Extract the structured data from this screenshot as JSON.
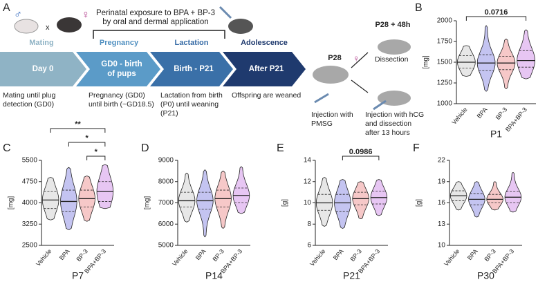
{
  "panel_a": {
    "label": "A",
    "male": "♂",
    "times": "x",
    "female": "♀",
    "exposure": [
      "Perinatal exposure to BPA + BP-3",
      "by oral and dermal application"
    ],
    "phases": [
      {
        "name": "Mating",
        "step": [
          "Day 0"
        ],
        "desc": [
          "Mating until plug",
          "detection (GD0)"
        ]
      },
      {
        "name": "Pregnancy",
        "step": [
          "GD0 - birth",
          "of pups"
        ],
        "desc": [
          "Pregnancy (GD0)",
          "until birth (~GD18.5)"
        ]
      },
      {
        "name": "Lactation",
        "step": [
          "Birth - P21"
        ],
        "desc": [
          "Lactation from birth",
          "(P0) until weaning",
          "(P21)"
        ]
      },
      {
        "name": "Adolescence",
        "step": [
          "After P21"
        ],
        "desc": [
          "Offspring are weaned"
        ]
      }
    ],
    "p28": "P28",
    "p28_48": "P28 + 48h",
    "dissection": "Dissection",
    "female2": "♀",
    "pmsg": [
      "Injection with",
      "PMSG"
    ],
    "hcg": [
      "Injection with hCG",
      "and dissection",
      "after 13 hours"
    ]
  },
  "chart_data": [
    {
      "type": "violin",
      "panel": "B",
      "title": "P1",
      "y_label": "[mg]",
      "categories": [
        "Vehicle",
        "BPA",
        "BP-3",
        "BPA+BP-3"
      ],
      "colors": [
        "#b0b0b0",
        "#3a3ad0",
        "#e04848",
        "#b040d8"
      ],
      "median": [
        1500,
        1490,
        1490,
        1520
      ],
      "q1": [
        1430,
        1400,
        1410,
        1440
      ],
      "q3": [
        1580,
        1590,
        1570,
        1640
      ],
      "min": [
        1330,
        1150,
        1180,
        1300
      ],
      "max": [
        1700,
        1940,
        1780,
        1890
      ],
      "ylim": [
        1000,
        2000
      ],
      "yticks": [
        1000,
        1250,
        1500,
        1750,
        2000
      ],
      "annotations": [
        {
          "text": "0.0716",
          "between": [
            "Vehicle",
            "BPA+BP-3"
          ]
        }
      ]
    },
    {
      "type": "violin",
      "panel": "C",
      "title": "P7",
      "y_label": "[mg]",
      "categories": [
        "Vehicle",
        "BPA",
        "BP-3",
        "BPA+BP-3"
      ],
      "colors": [
        "#b0b0b0",
        "#3a3ad0",
        "#e04848",
        "#b040d8"
      ],
      "median": [
        4100,
        4050,
        4150,
        4400
      ],
      "q1": [
        3800,
        3700,
        3850,
        4050
      ],
      "q3": [
        4400,
        4450,
        4450,
        4750
      ],
      "min": [
        3400,
        3050,
        3350,
        3800
      ],
      "max": [
        4900,
        5250,
        4950,
        5350
      ],
      "ylim": [
        2500,
        5500
      ],
      "yticks": [
        2500,
        3250,
        4000,
        4750,
        5500
      ],
      "annotations": [
        {
          "text": "**",
          "between": [
            "Vehicle",
            "BPA+BP-3"
          ]
        },
        {
          "text": "*",
          "between": [
            "BPA",
            "BPA+BP-3"
          ]
        },
        {
          "text": "*",
          "between": [
            "BP-3",
            "BPA+BP-3"
          ]
        }
      ]
    },
    {
      "type": "violin",
      "panel": "D",
      "title": "P14",
      "y_label": "[mg]",
      "categories": [
        "Vehicle",
        "BPA",
        "BP-3",
        "BPA+BP-3"
      ],
      "colors": [
        "#b0b0b0",
        "#3a3ad0",
        "#e04848",
        "#b040d8"
      ],
      "median": [
        7100,
        7100,
        7200,
        7350
      ],
      "q1": [
        6800,
        6700,
        6800,
        7000
      ],
      "q3": [
        7500,
        7500,
        7600,
        7700
      ],
      "min": [
        6100,
        5400,
        5800,
        6500
      ],
      "max": [
        8400,
        8550,
        8500,
        8700
      ],
      "ylim": [
        5000,
        9000
      ],
      "yticks": [
        5000,
        6000,
        7000,
        8000,
        9000
      ],
      "annotations": []
    },
    {
      "type": "violin",
      "panel": "E",
      "title": "P21",
      "y_label": "[g]",
      "categories": [
        "Vehicle",
        "BPA",
        "BP-3",
        "BPA+BP-3"
      ],
      "colors": [
        "#b0b0b0",
        "#3a3ad0",
        "#e04848",
        "#b040d8"
      ],
      "median": [
        10,
        10,
        10.4,
        10.5
      ],
      "q1": [
        9.3,
        9.2,
        9.8,
        9.9
      ],
      "q3": [
        10.8,
        10.8,
        11,
        11.1
      ],
      "min": [
        7.8,
        7.6,
        8.5,
        8.8
      ],
      "max": [
        12.4,
        12.2,
        12,
        12.2
      ],
      "ylim": [
        6,
        14
      ],
      "yticks": [
        6,
        8,
        10,
        12,
        14
      ],
      "annotations": [
        {
          "text": "0.0986",
          "between": [
            "BPA",
            "BPA+BP-3"
          ]
        }
      ]
    },
    {
      "type": "violin",
      "panel": "F",
      "title": "P30",
      "y_label": "[g]",
      "categories": [
        "Vehicle",
        "BPA",
        "BP-3",
        "BPA+BP-3"
      ],
      "colors": [
        "#b0b0b0",
        "#3a3ad0",
        "#e04848",
        "#b040d8"
      ],
      "median": [
        17,
        16.5,
        16.5,
        16.8
      ],
      "q1": [
        16.3,
        15.7,
        16,
        16
      ],
      "q3": [
        17.7,
        17.3,
        17.2,
        17.6
      ],
      "min": [
        15,
        14,
        15,
        14.7
      ],
      "max": [
        19,
        19,
        19,
        20.3
      ],
      "ylim": [
        10,
        22
      ],
      "yticks": [
        10,
        13,
        16,
        19,
        22
      ],
      "annotations": []
    }
  ]
}
